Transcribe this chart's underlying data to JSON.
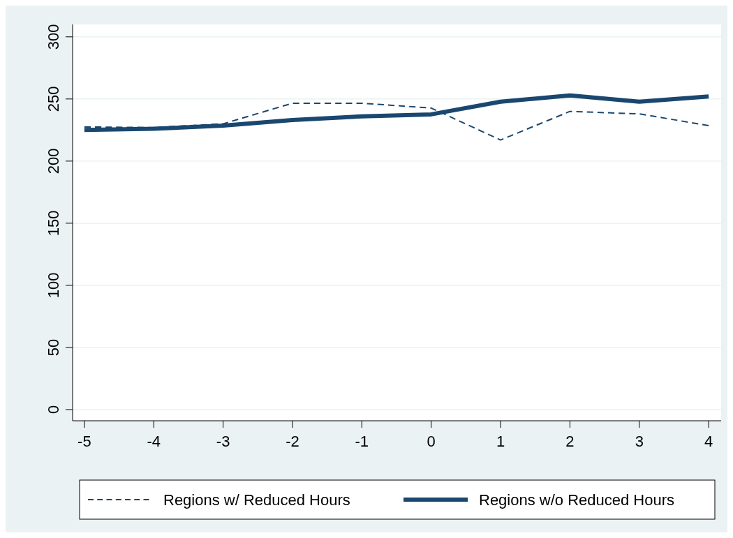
{
  "chart_data": {
    "type": "line",
    "x": [
      -5,
      -4,
      -3,
      -2,
      -1,
      0,
      1,
      2,
      3,
      4
    ],
    "series": [
      {
        "name": "Regions w/ Reduced Hours",
        "color": "#1a476f",
        "line_style": "dashed",
        "values": [
          227.5,
          227,
          230,
          246.6,
          246.6,
          242.7,
          217,
          240,
          238,
          228.6
        ]
      },
      {
        "name": "Regions w/o Reduced Hours",
        "color": "#1a476f",
        "line_style": "solid",
        "values": [
          225,
          226,
          228.6,
          233,
          236,
          237.6,
          247.8,
          252.8,
          247.8,
          252
        ]
      }
    ],
    "xlim": [
      -5.17,
      4.18
    ],
    "xticks": [
      -5,
      -4,
      -3,
      -2,
      -1,
      0,
      1,
      2,
      3,
      4
    ],
    "ylim": [
      -9,
      310
    ],
    "yticks": [
      0,
      50,
      100,
      150,
      200,
      250,
      300
    ],
    "grid": "y",
    "legend": "bottom"
  }
}
